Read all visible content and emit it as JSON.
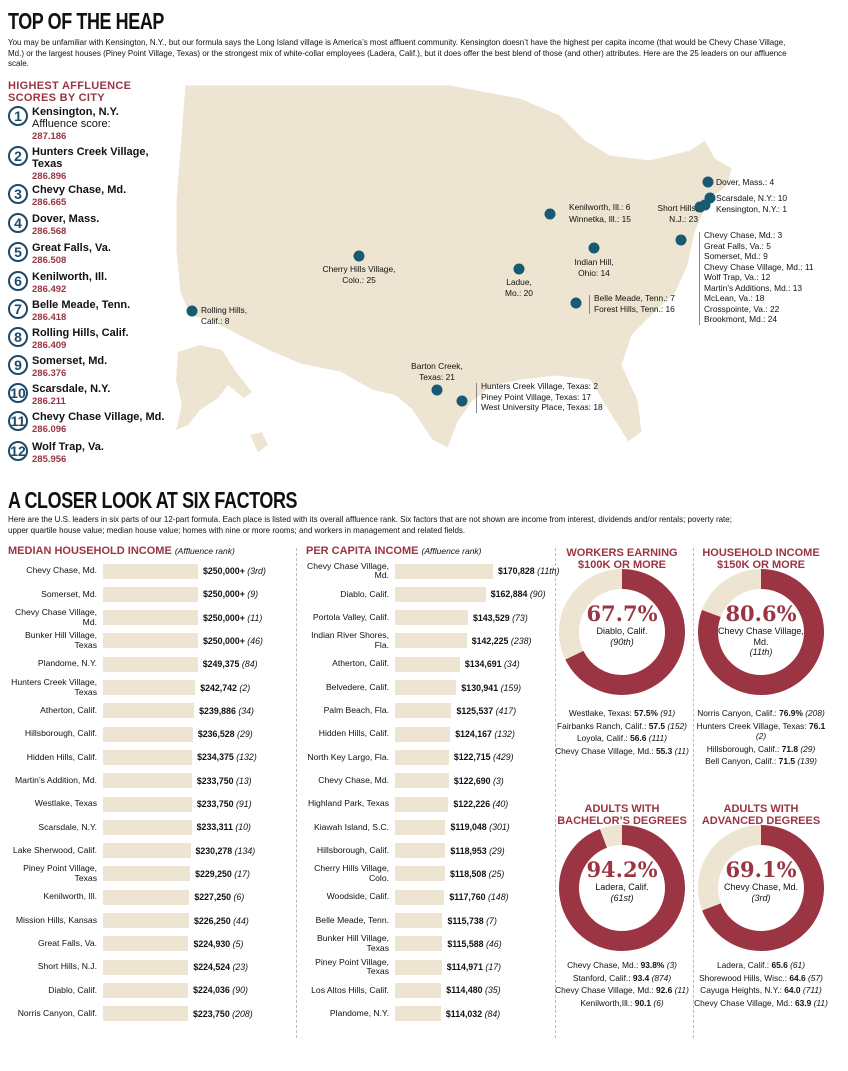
{
  "header": {
    "title": "TOP OF THE HEAP",
    "intro": "You may be unfamiliar with Kensington, N.Y., but our formula says the Long Island village is America’s most affluent community. Kensington doesn’t have the highest per capita income (that would be Chevy Chase Village, Md.) or the largest houses (Piney Point Village, Texas) or the strongest mix of white-collar employees (Ladera, Calif.), but it does offer the best blend of those (and other) attributes. Here are the 25 leaders on our affluence scale."
  },
  "ranking": {
    "title": "HIGHEST AFFLUENCE SCORES BY CITY",
    "score_label": "Affluence score:",
    "items": [
      {
        "rank": "1",
        "name": "Kensington, N.Y.",
        "score": "287.186"
      },
      {
        "rank": "2",
        "name": "Hunters Creek Village, Texas",
        "score": "286.896"
      },
      {
        "rank": "3",
        "name": "Chevy Chase, Md.",
        "score": "286.665"
      },
      {
        "rank": "4",
        "name": "Dover, Mass.",
        "score": "286.568"
      },
      {
        "rank": "5",
        "name": "Great Falls, Va.",
        "score": "286.508"
      },
      {
        "rank": "6",
        "name": "Kenilworth, Ill.",
        "score": "286.492"
      },
      {
        "rank": "7",
        "name": "Belle Meade, Tenn.",
        "score": "286.418"
      },
      {
        "rank": "8",
        "name": "Rolling Hills, Calif.",
        "score": "286.409"
      },
      {
        "rank": "9",
        "name": "Somerset, Md.",
        "score": "286.376"
      },
      {
        "rank": "10",
        "name": "Scarsdale, N.Y.",
        "score": "286.211"
      },
      {
        "rank": "11",
        "name": "Chevy Chase Village, Md.",
        "score": "286.096"
      },
      {
        "rank": "12",
        "name": "Wolf Trap, Va.",
        "score": "285.956"
      }
    ]
  },
  "map": {
    "labels": [
      {
        "lines": [
          "Dover, Mass.: 4"
        ]
      },
      {
        "lines": [
          "Scarsdale, N.Y.: 10"
        ]
      },
      {
        "lines": [
          "Kensington, N.Y.: 1"
        ]
      },
      {
        "lines": [
          "Short Hills,",
          "N.J.: 23"
        ]
      },
      {
        "lines": [
          "Kenilworth, Ill.: 6"
        ]
      },
      {
        "lines": [
          "Winnetka, Ill.: 15"
        ]
      },
      {
        "lines": [
          "Chevy Chase, Md.: 3",
          "Great Falls, Va.: 5",
          "Somerset, Md.: 9",
          "Chevy Chase Village, Md.: 11",
          "Wolf Trap, Va.: 12",
          "Martin’s Additions, Md.: 13",
          "McLean, Va.: 18",
          "Crosspointe, Va.: 22",
          "Brookmont, Md.: 24"
        ]
      },
      {
        "lines": [
          "Cherry Hills Village,",
          "Colo.: 25"
        ]
      },
      {
        "lines": [
          "Indian Hill,",
          "Ohio: 14"
        ]
      },
      {
        "lines": [
          "Ladue,",
          "Mo.: 20"
        ]
      },
      {
        "lines": [
          "Belle Meade, Tenn.: 7",
          "Forest Hills, Tenn.: 16"
        ]
      },
      {
        "lines": [
          "Rolling Hills,",
          "Calif.: 8"
        ]
      },
      {
        "lines": [
          "Barton Creek,",
          "Texas: 21"
        ]
      },
      {
        "lines": [
          "Hunters Creek Village, Texas: 2",
          "Piney Point Village, Texas: 17",
          "West University Place, Texas: 18"
        ]
      }
    ],
    "land_color": "#ede5d1",
    "dot_color": "#195a73"
  },
  "section2": {
    "title": "A CLOSER LOOK AT SIX FACTORS",
    "intro": "Here are the U.S. leaders in six parts of our 12-part formula. Each place is listed with its overall affluence rank. Six factors that are not shown are income from interest, dividends and/or rentals; poverty rate; upper quartile house value; median house value; homes with nine or more rooms; and workers in management and related fields."
  },
  "chart_data": [
    {
      "type": "bar",
      "title": "MEDIAN HOUSEHOLD INCOME",
      "subtitle": "(Affluence rank)",
      "categories": [
        "Chevy Chase, Md.",
        "Somerset, Md.",
        "Chevy Chase Village, Md.",
        "Bunker Hill Village, Texas",
        "Plandome, N.Y.",
        "Hunters Creek Village, Texas",
        "Atherton, Calif.",
        "Hillsborough, Calif.",
        "Hidden Hills, Calif.",
        "Martin’s Addition, Md.",
        "Westlake, Texas",
        "Scarsdale, N.Y.",
        "Lake Sherwood, Calif.",
        "Piney Point Village, Texas",
        "Kenilworth, Ill.",
        "Mission Hills, Kansas",
        "Great Falls, Va.",
        "Short Hills, N.J.",
        "Diablo, Calif.",
        "Norris Canyon, Calif."
      ],
      "values": [
        250000,
        250000,
        250000,
        250000,
        249375,
        242742,
        239886,
        236528,
        234375,
        233750,
        233750,
        233311,
        230278,
        229250,
        227250,
        226250,
        224930,
        224524,
        224036,
        223750
      ],
      "value_labels": [
        "$250,000+",
        "$250,000+",
        "$250,000+",
        "$250,000+",
        "$249,375",
        "$242,742",
        "$239,886",
        "$236,528",
        "$234,375",
        "$233,750",
        "$233,750",
        "$233,311",
        "$230,278",
        "$229,250",
        "$227,250",
        "$226,250",
        "$224,930",
        "$224,524",
        "$224,036",
        "$223,750"
      ],
      "ranks": [
        "(3rd)",
        "(9)",
        "(11)",
        "(46)",
        "(84)",
        "(2)",
        "(34)",
        "(29)",
        "(132)",
        "(13)",
        "(91)",
        "(10)",
        "(134)",
        "(17)",
        "(6)",
        "(44)",
        "(5)",
        "(23)",
        "(90)",
        "(208)"
      ],
      "bar_color": "#ede5d1"
    },
    {
      "type": "bar",
      "title": "PER CAPITA INCOME",
      "subtitle": "(Affluence rank)",
      "categories": [
        "Chevy Chase Village, Md.",
        "Diablo, Calif.",
        "Portola Valley, Calif.",
        "Indian River Shores, Fla.",
        "Atherton, Calif.",
        "Belvedere, Calif.",
        "Palm Beach, Fla.",
        "Hidden Hills, Calif.",
        "North Key Largo, Fla.",
        "Chevy Chase, Md.",
        "Highland Park, Texas",
        "Kiawah Island, S.C.",
        "Hillsborough, Calif.",
        "Cherry Hills Village, Colo.",
        "Woodside, Calif.",
        "Belle Meade, Tenn.",
        "Bunker Hill Village, Texas",
        "Piney Point Village, Texas",
        "Los Altos Hills, Calif.",
        "Plandome, N.Y."
      ],
      "values": [
        170828,
        162884,
        143529,
        142225,
        134691,
        130941,
        125537,
        124167,
        122715,
        122690,
        122226,
        119048,
        118953,
        118508,
        117760,
        115738,
        115588,
        114971,
        114480,
        114032
      ],
      "value_labels": [
        "$170,828",
        "$162,884",
        "$143,529",
        "$142,225",
        "$134,691",
        "$130,941",
        "$125,537",
        "$124,167",
        "$122,715",
        "$122,690",
        "$122,226",
        "$119,048",
        "$118,953",
        "$118,508",
        "$117,760",
        "$115,738",
        "$115,588",
        "$114,971",
        "$114,480",
        "$114,032"
      ],
      "ranks": [
        "(11th)",
        "(90)",
        "(73)",
        "(238)",
        "(34)",
        "(159)",
        "(417)",
        "(132)",
        "(429)",
        "(3)",
        "(40)",
        "(301)",
        "(29)",
        "(25)",
        "(148)",
        "(7)",
        "(46)",
        "(17)",
        "(35)",
        "(84)"
      ],
      "bar_color": "#ede5d1"
    },
    {
      "type": "pie",
      "title": "WORKERS EARNING $100K OR MORE",
      "value": 67.7,
      "value_label": "67.7%",
      "place": "Diablo, Calif.",
      "rank": "(90th)",
      "others": [
        {
          "place": "Westlake, Texas:",
          "value": "57.5%",
          "rank": "(91)"
        },
        {
          "place": "Fairbanks Ranch, Calif.:",
          "value": "57.5",
          "rank": "(152)"
        },
        {
          "place": "Loyola, Calif.:",
          "value": "56.6",
          "rank": "(111)"
        },
        {
          "place": "Chevy Chase Village, Md.:",
          "value": "55.3",
          "rank": "(11)"
        }
      ]
    },
    {
      "type": "pie",
      "title": "HOUSEHOLD INCOME $150K OR MORE",
      "value": 80.6,
      "value_label": "80.6%",
      "place": "Chevy Chase Village, Md.",
      "rank": "(11th)",
      "others": [
        {
          "place": "Norris Canyon, Calif.:",
          "value": "76.9%",
          "rank": "(208)"
        },
        {
          "place": "Hunters Creek Village, Texas:",
          "value": "76.1",
          "rank": "(2)"
        },
        {
          "place": "Hillsborough, Calif.:",
          "value": "71.8",
          "rank": "(29)"
        },
        {
          "place": "Bell Canyon, Calif.:",
          "value": "71.5",
          "rank": "(139)"
        }
      ]
    },
    {
      "type": "pie",
      "title": "ADULTS WITH BACHELOR’S DEGREES",
      "value": 94.2,
      "value_label": "94.2%",
      "place": "Ladera, Calif.",
      "rank": "(61st)",
      "others": [
        {
          "place": "Chevy Chase, Md.:",
          "value": "93.8%",
          "rank": "(3)"
        },
        {
          "place": "Stanford, Calif.:",
          "value": "93.4",
          "rank": "(874)"
        },
        {
          "place": "Chevy Chase Village, Md.:",
          "value": "92.6",
          "rank": "(11)"
        },
        {
          "place": "Kenilworth,Ill.:",
          "value": "90.1",
          "rank": "(6)"
        }
      ]
    },
    {
      "type": "pie",
      "title": "ADULTS WITH ADVANCED DEGREES",
      "value": 69.1,
      "value_label": "69.1%",
      "place": "Chevy Chase, Md.",
      "rank": "(3rd)",
      "others": [
        {
          "place": "Ladera, Calif.:",
          "value": "65.6",
          "rank": "(61)"
        },
        {
          "place": "Shorewood Hills, Wisc.:",
          "value": "64.6",
          "rank": "(57)"
        },
        {
          "place": "Cayuga Heights, N.Y.:",
          "value": "64.0",
          "rank": "(711)"
        },
        {
          "place": "Chevy Chase Village, Md.:",
          "value": "63.9",
          "rank": "(11)"
        }
      ]
    }
  ],
  "colors": {
    "accent": "#9b3443",
    "ring_fill": "#9b3443",
    "ring_rest": "#ede5d1",
    "dot": "#195a73"
  }
}
